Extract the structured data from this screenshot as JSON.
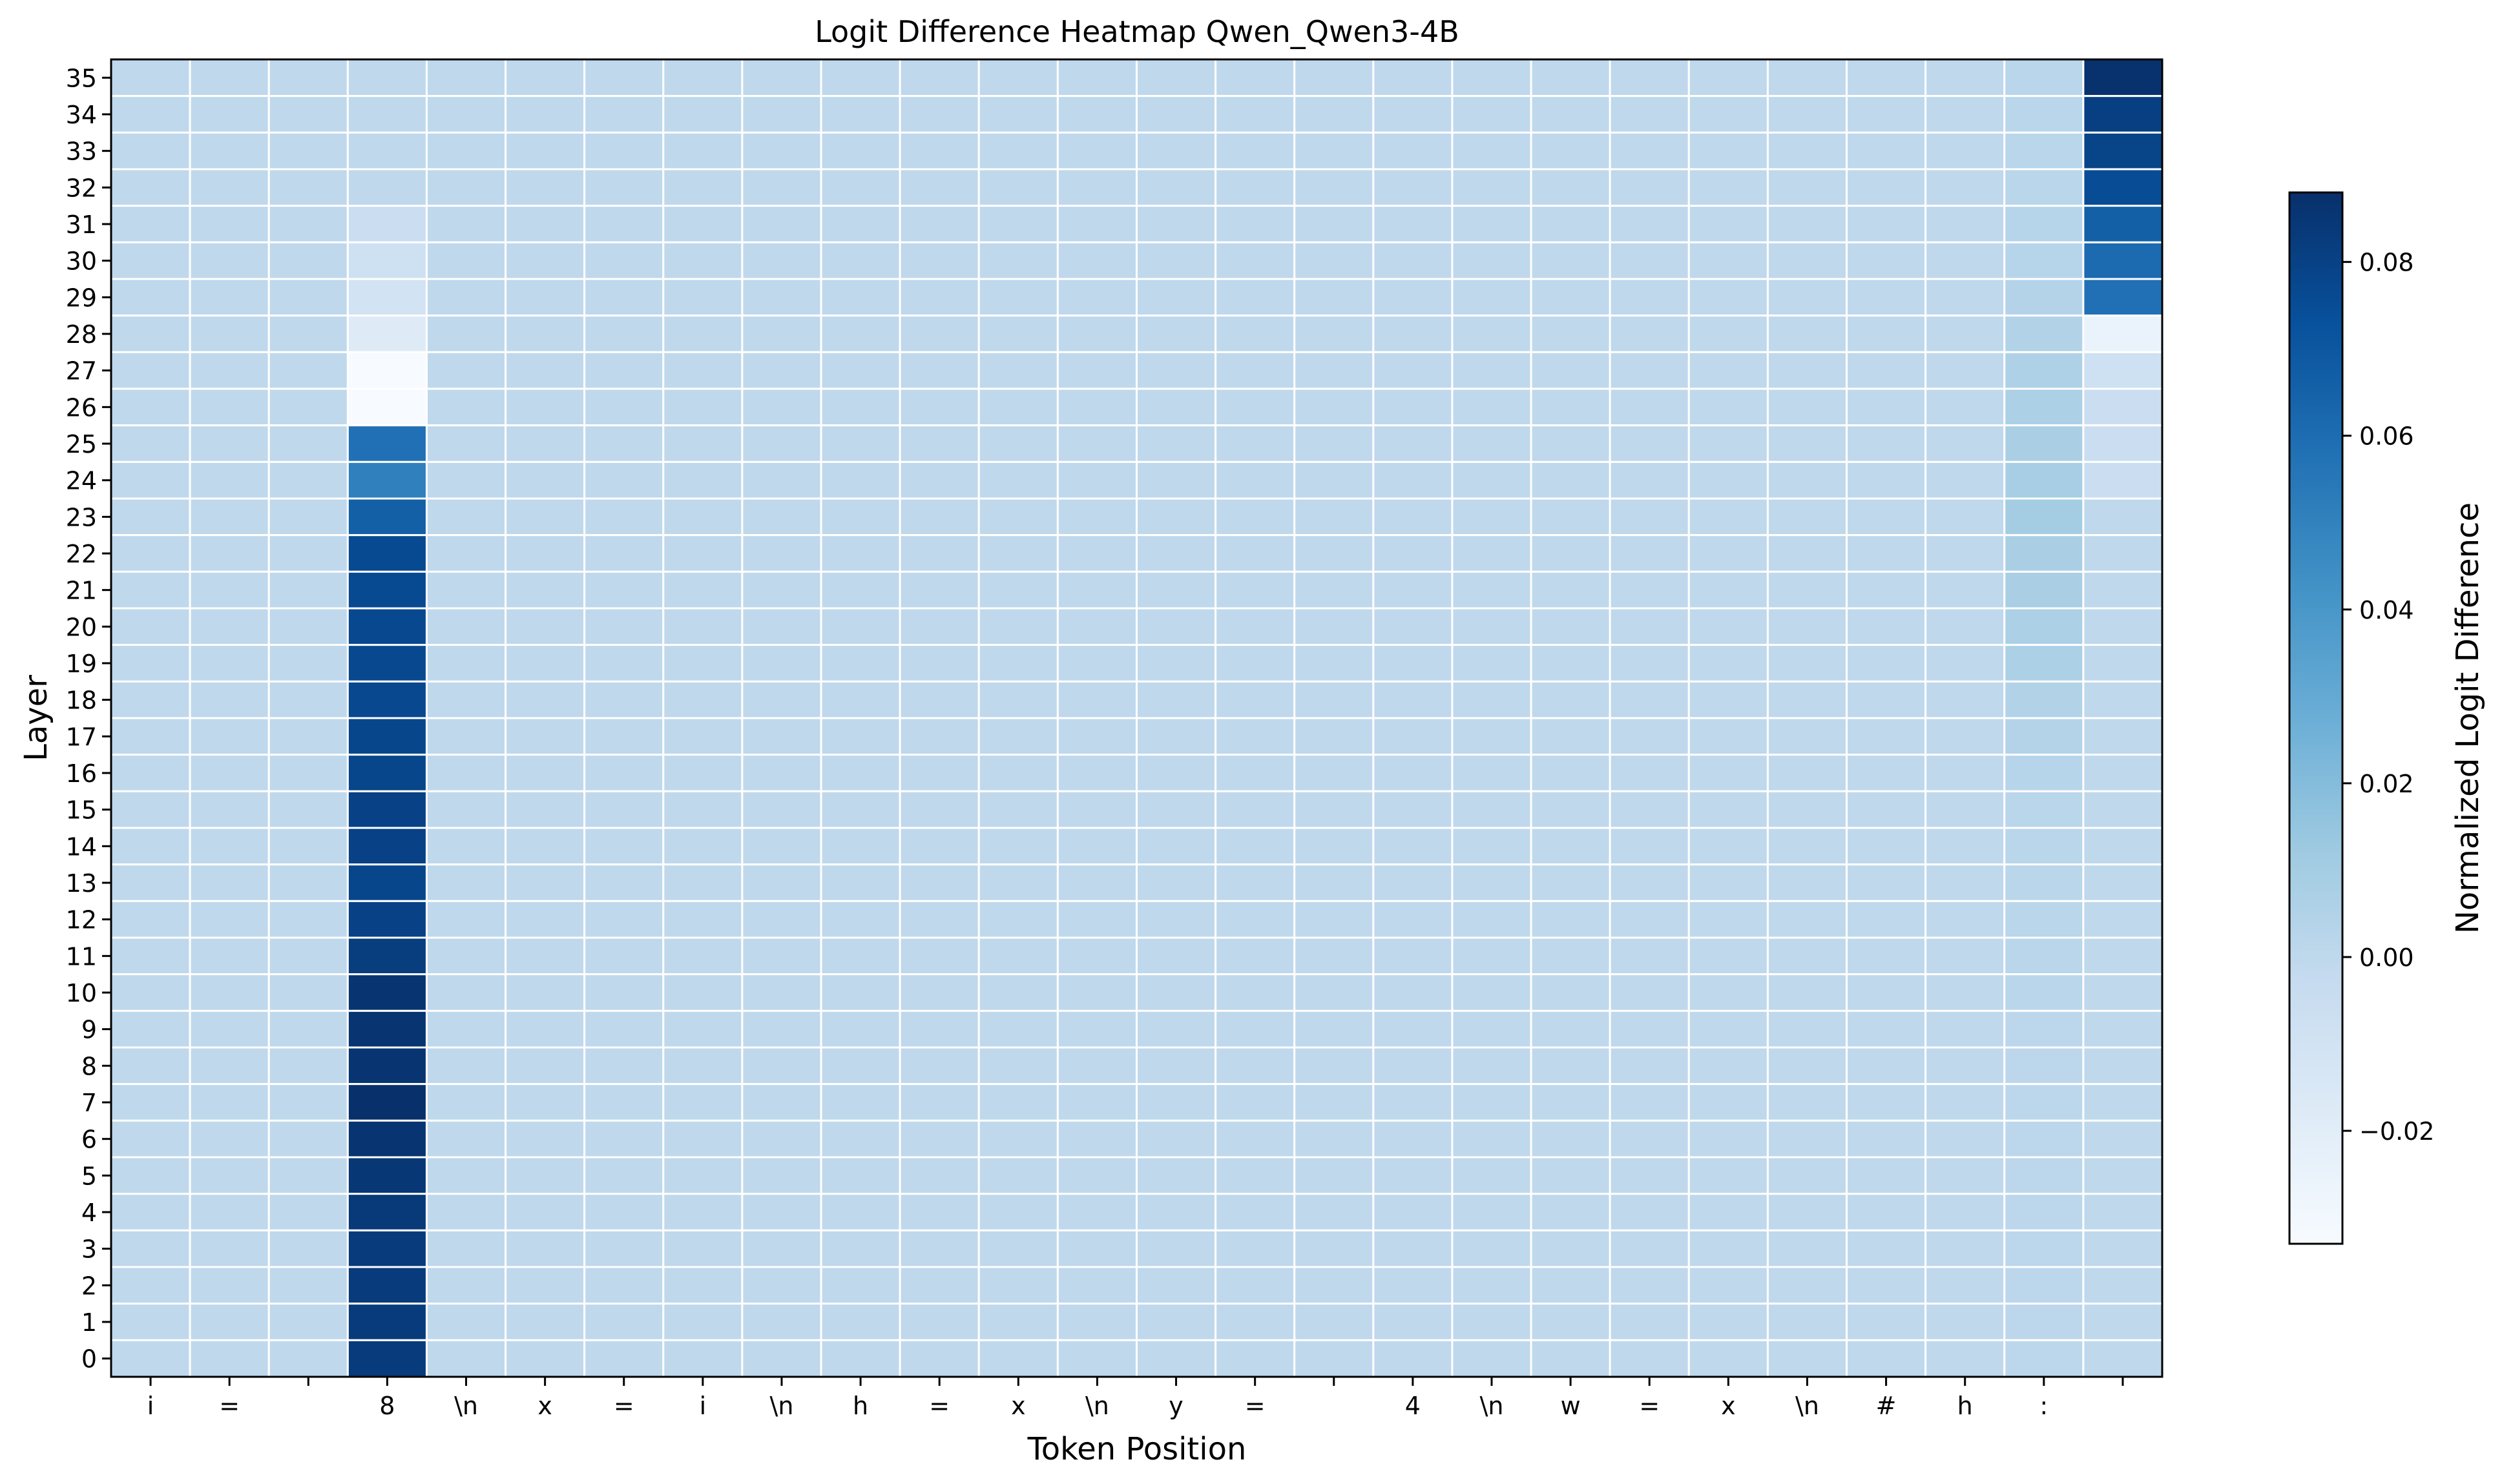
{
  "chart_data": {
    "type": "heatmap",
    "title": "Logit Difference Heatmap Qwen_Qwen3-4B",
    "xlabel": "Token Position",
    "ylabel": "Layer",
    "colorbar_label": "Normalized Logit Difference",
    "colormap": "Blues",
    "vmin": -0.033,
    "vmax": 0.088,
    "colorbar_ticks": [
      "0.08",
      "0.06",
      "0.04",
      "0.02",
      "0.00",
      "−0.02"
    ],
    "colorbar_tick_values": [
      0.08,
      0.06,
      0.04,
      0.02,
      0.0,
      -0.02
    ],
    "x_tokens": [
      "i",
      "=",
      "",
      "8",
      "\\n",
      "x",
      "=",
      "i",
      "\\n",
      "h",
      "=",
      "x",
      "\\n",
      "y",
      "=",
      "",
      "4",
      "\\n",
      "w",
      "=",
      "x",
      "\\n",
      "#",
      "h",
      ":",
      ""
    ],
    "layers": [
      35,
      34,
      33,
      32,
      31,
      30,
      29,
      28,
      27,
      26,
      25,
      24,
      23,
      22,
      21,
      20,
      19,
      18,
      17,
      16,
      15,
      14,
      13,
      12,
      11,
      10,
      9,
      8,
      7,
      6,
      5,
      4,
      3,
      2,
      1,
      0
    ],
    "baseline_value": 0.0,
    "columns": [
      {
        "token_index": 3,
        "token": "8",
        "values_by_layer_top_to_bottom": [
          0.0,
          0.0,
          0.0,
          0.0,
          -0.006,
          -0.008,
          -0.01,
          -0.018,
          -0.033,
          -0.033,
          0.058,
          0.051,
          0.066,
          0.076,
          0.076,
          0.077,
          0.077,
          0.077,
          0.078,
          0.078,
          0.08,
          0.08,
          0.078,
          0.08,
          0.082,
          0.086,
          0.086,
          0.086,
          0.088,
          0.086,
          0.085,
          0.084,
          0.083,
          0.083,
          0.083,
          0.083
        ]
      },
      {
        "token_index": 24,
        "token": ":",
        "values_by_layer_top_to_bottom": [
          0.002,
          0.002,
          0.002,
          0.002,
          0.003,
          0.003,
          0.004,
          0.005,
          0.006,
          0.007,
          0.008,
          0.009,
          0.01,
          0.008,
          0.008,
          0.007,
          0.007,
          0.005,
          0.004,
          0.003,
          0.002,
          0.002,
          0.002,
          0.002,
          0.002,
          0.002,
          0.001,
          0.001,
          0.001,
          0.001,
          0.001,
          0.001,
          0.001,
          0.001,
          0.001,
          0.001
        ]
      },
      {
        "token_index": 25,
        "token": "",
        "values_by_layer_top_to_bottom": [
          0.087,
          0.081,
          0.079,
          0.075,
          0.066,
          0.061,
          0.058,
          -0.025,
          -0.008,
          -0.006,
          -0.006,
          -0.006,
          0.0,
          0.0,
          0.0,
          0.0,
          0.0,
          0.0,
          0.0,
          0.0,
          0.0,
          0.0,
          0.0,
          0.0,
          0.0,
          0.0,
          0.0,
          0.0,
          0.0,
          0.0,
          0.0,
          0.0,
          0.0,
          0.0,
          0.0,
          0.0
        ]
      }
    ]
  }
}
